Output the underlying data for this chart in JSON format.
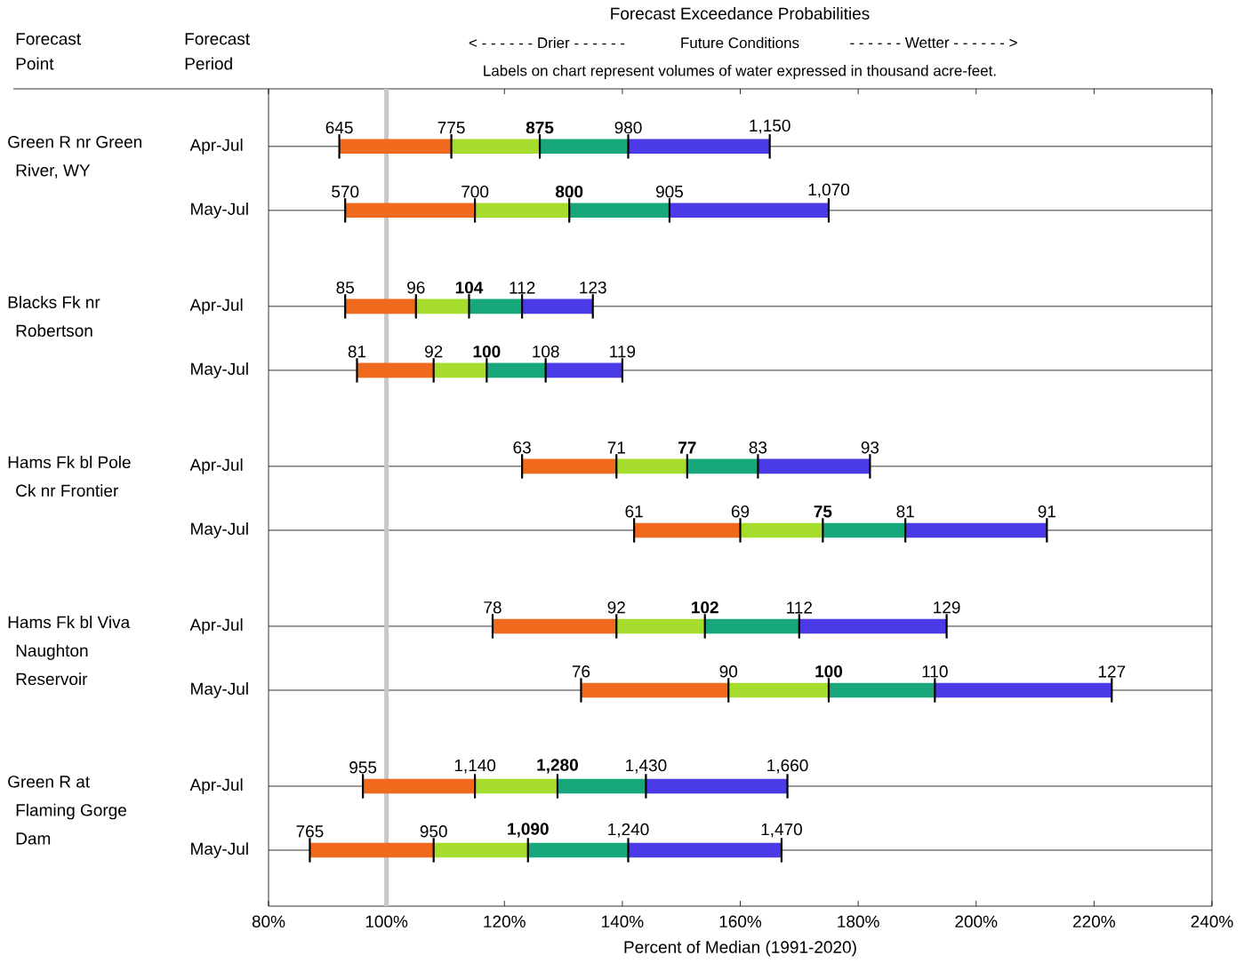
{
  "chart_data": {
    "type": "bar",
    "orientation": "horizontal",
    "title": "Forecast Exceedance Probabilities",
    "xlabel": "Percent of Median (1991-2020)",
    "categories": [
      "Apr-Jul",
      "May-Jul",
      "Apr-Jul",
      "May-Jul",
      "Apr-Jul",
      "May-Jul",
      "Apr-Jul",
      "May-Jul",
      "Apr-Jul",
      "May-Jul"
    ],
    "series": [
      {
        "color": "#ef6a1c",
        "base": [
          92,
          93,
          93,
          95,
          123,
          142,
          118,
          133,
          96,
          87
        ],
        "values": [
          19,
          22,
          12,
          13,
          16,
          18,
          21,
          25,
          19,
          21
        ]
      },
      {
        "color": "#a6dc2c",
        "base": [
          111,
          115,
          105,
          108,
          139,
          160,
          139,
          158,
          115,
          108
        ],
        "values": [
          15,
          16,
          9,
          9,
          12,
          14,
          15,
          17,
          14,
          16
        ]
      },
      {
        "color": "#18a77a",
        "base": [
          126,
          131,
          114,
          117,
          151,
          174,
          154,
          175,
          129,
          124
        ],
        "values": [
          15,
          17,
          9,
          10,
          12,
          14,
          16,
          18,
          15,
          17
        ]
      },
      {
        "color": "#4a3be6",
        "base": [
          141,
          148,
          123,
          127,
          163,
          188,
          170,
          193,
          144,
          141
        ],
        "values": [
          24,
          27,
          12,
          13,
          19,
          24,
          25,
          30,
          24,
          26
        ]
      }
    ],
    "xlim": [
      80,
      240
    ],
    "xticks": [
      {
        "value": 80,
        "label": "80%"
      },
      {
        "value": 100,
        "label": "100%"
      },
      {
        "value": 120,
        "label": "120%"
      },
      {
        "value": 140,
        "label": "140%"
      },
      {
        "value": 160,
        "label": "160%"
      },
      {
        "value": 180,
        "label": "180%"
      },
      {
        "value": 200,
        "label": "200%"
      },
      {
        "value": 220,
        "label": "220%"
      },
      {
        "value": 240,
        "label": "240%"
      }
    ],
    "grid": "y",
    "ref_lines": [
      {
        "axis": "x",
        "value": 100,
        "color": "#c8c8c8"
      }
    ],
    "annotations": [
      "Forecast Point",
      "Forecast Period",
      "Green R nr Green River, WY",
      "Blacks Fk nr Robertson",
      "Hams Fk bl Pole Ck nr Frontier",
      "Hams Fk bl Viva Naughton Reservoir",
      "Green R at Flaming Gorge Dam",
      "< - - - - - - Drier - - - - - -",
      "Future Conditions",
      "- - - - - - Wetter - - - - - - >",
      "Labels on chart represent volumes of water expressed in thousand acre-feet.",
      "645",
      "775",
      "**875**",
      "980",
      "1,150",
      "570",
      "700",
      "**800**",
      "905",
      "1,070",
      "85",
      "96",
      "**104**",
      "112",
      "123",
      "81",
      "92",
      "**100**",
      "108",
      "119",
      "63",
      "71",
      "**77**",
      "83",
      "93",
      "61",
      "69",
      "**75**",
      "81",
      "91",
      "78",
      "92",
      "**102**",
      "112",
      "129",
      "76",
      "90",
      "**100**",
      "110",
      "127",
      "955",
      "1,140",
      "**1,280**",
      "1,430",
      "1,660",
      "765",
      "950",
      "**1,090**",
      "1,240",
      "1,470"
    ]
  }
}
